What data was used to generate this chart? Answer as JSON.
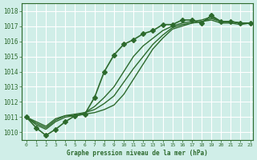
{
  "xlabel": "Graphe pression niveau de la mer (hPa)",
  "bg_color": "#d0eee8",
  "grid_color": "#ffffff",
  "line_color": "#2d6a2d",
  "xlim": [
    0,
    23
  ],
  "ylim": [
    1009.5,
    1018.5
  ],
  "yticks": [
    1010,
    1011,
    1012,
    1013,
    1014,
    1015,
    1016,
    1017,
    1018
  ],
  "xticks": [
    0,
    1,
    2,
    3,
    4,
    5,
    6,
    7,
    8,
    9,
    10,
    11,
    12,
    13,
    14,
    15,
    16,
    17,
    18,
    19,
    20,
    21,
    22,
    23
  ],
  "series": [
    {
      "x": [
        0,
        1,
        2,
        3,
        4,
        5,
        6,
        7,
        8,
        9,
        10,
        11,
        12,
        13,
        14,
        15,
        16,
        17,
        18,
        19,
        20,
        21,
        22,
        23
      ],
      "y": [
        1011.0,
        1010.3,
        1009.8,
        1010.2,
        1010.7,
        1011.1,
        1011.2,
        1012.3,
        1014.0,
        1015.1,
        1015.8,
        1016.1,
        1016.5,
        1016.7,
        1017.1,
        1017.1,
        1017.4,
        1017.4,
        1017.2,
        1017.7,
        1017.3,
        1017.3,
        1017.2,
        1017.2
      ],
      "marker": "D",
      "markersize": 3,
      "linewidth": 1.2
    },
    {
      "x": [
        0,
        1,
        2,
        3,
        4,
        5,
        6,
        7,
        8,
        9,
        10,
        11,
        12,
        13,
        14,
        15,
        16,
        17,
        18,
        19,
        20,
        21,
        22,
        23
      ],
      "y": [
        1011.0,
        1010.5,
        1010.2,
        1010.7,
        1011.0,
        1011.1,
        1011.2,
        1011.3,
        1011.5,
        1011.8,
        1012.5,
        1013.5,
        1014.5,
        1015.5,
        1016.2,
        1016.8,
        1017.0,
        1017.2,
        1017.3,
        1017.4,
        1017.2,
        1017.2,
        1017.1,
        1017.2
      ],
      "marker": null,
      "markersize": 0,
      "linewidth": 1.0
    },
    {
      "x": [
        0,
        1,
        2,
        3,
        4,
        5,
        6,
        7,
        8,
        9,
        10,
        11,
        12,
        13,
        14,
        15,
        16,
        17,
        18,
        19,
        20,
        21,
        22,
        23
      ],
      "y": [
        1011.0,
        1010.6,
        1010.3,
        1010.8,
        1011.1,
        1011.1,
        1011.3,
        1011.5,
        1011.9,
        1012.4,
        1013.3,
        1014.2,
        1015.0,
        1015.8,
        1016.4,
        1016.9,
        1017.1,
        1017.2,
        1017.3,
        1017.5,
        1017.3,
        1017.3,
        1017.2,
        1017.2
      ],
      "marker": null,
      "markersize": 0,
      "linewidth": 1.0
    },
    {
      "x": [
        0,
        1,
        2,
        3,
        4,
        5,
        6,
        7,
        8,
        9,
        10,
        11,
        12,
        13,
        14,
        15,
        16,
        17,
        18,
        19,
        20,
        21,
        22,
        23
      ],
      "y": [
        1011.0,
        1010.7,
        1010.4,
        1010.9,
        1011.1,
        1011.2,
        1011.3,
        1011.7,
        1012.3,
        1013.0,
        1014.0,
        1015.0,
        1015.7,
        1016.2,
        1016.7,
        1017.0,
        1017.2,
        1017.3,
        1017.4,
        1017.6,
        1017.3,
        1017.3,
        1017.2,
        1017.2
      ],
      "marker": null,
      "markersize": 0,
      "linewidth": 1.0
    }
  ]
}
